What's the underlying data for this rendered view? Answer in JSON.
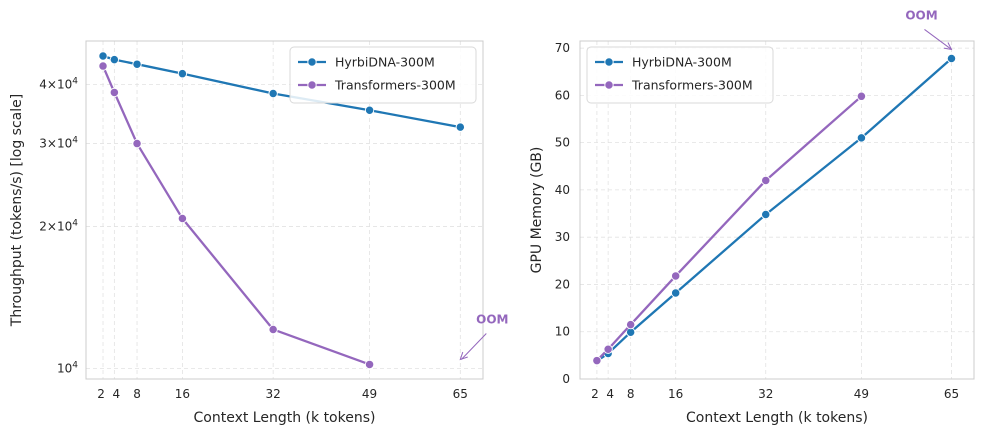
{
  "chart_data": [
    {
      "type": "line",
      "title": "",
      "xlabel": "Context Length (k tokens)",
      "ylabel": "Throughput (tokens/s) [log scale]",
      "yscale": "log",
      "grid": true,
      "legend_position": "top-right",
      "x_ticks": [
        2,
        4,
        8,
        16,
        32,
        49,
        65
      ],
      "x_tick_labels": [
        "2",
        "4",
        "8",
        "16",
        "32",
        "49",
        "65"
      ],
      "xlim": [
        -1,
        69
      ],
      "ylim": [
        9500,
        49500
      ],
      "y_major_ticks": [
        10000
      ],
      "y_major_tick_labels": [
        "10^4"
      ],
      "y_minor_ticks": [
        20000,
        30000,
        40000
      ],
      "y_minor_tick_labels": [
        "2×10^4",
        "3×10^4",
        "4×10^4"
      ],
      "series": [
        {
          "name": "HyrbiDNA-300M",
          "color": "#1f77b4",
          "x": [
            2,
            4,
            8,
            16,
            32,
            49,
            65
          ],
          "y": [
            46000,
            45200,
            44200,
            42200,
            38300,
            35300,
            32500
          ]
        },
        {
          "name": "Transformers-300M",
          "color": "#9467bd",
          "x": [
            2,
            4,
            8,
            16,
            32,
            49
          ],
          "y": [
            43800,
            38500,
            30000,
            20800,
            12100,
            10200
          ]
        }
      ],
      "annotations": [
        {
          "text": "OOM",
          "x": 65,
          "y": 10400,
          "color": "#9467bd"
        }
      ]
    },
    {
      "type": "line",
      "title": "",
      "xlabel": "Context Length (k tokens)",
      "ylabel": "GPU Memory (GB)",
      "yscale": "linear",
      "grid": true,
      "legend_position": "top-left",
      "x_ticks": [
        2,
        4,
        8,
        16,
        32,
        49,
        65
      ],
      "x_tick_labels": [
        "2",
        "4",
        "8",
        "16",
        "32",
        "49",
        "65"
      ],
      "xlim": [
        -1,
        69
      ],
      "ylim": [
        0,
        71.5
      ],
      "y_ticks": [
        0,
        10,
        20,
        30,
        40,
        50,
        60,
        70
      ],
      "y_tick_labels": [
        "0",
        "10",
        "20",
        "30",
        "40",
        "50",
        "60",
        "70"
      ],
      "series": [
        {
          "name": "HyrbiDNA-300M",
          "color": "#1f77b4",
          "x": [
            2,
            4,
            8,
            16,
            32,
            49,
            65
          ],
          "y": [
            3.8,
            5.4,
            9.9,
            18.2,
            34.8,
            51.0,
            67.8
          ]
        },
        {
          "name": "Transformers-300M",
          "color": "#9467bd",
          "x": [
            2,
            4,
            8,
            16,
            32,
            49
          ],
          "y": [
            3.9,
            6.3,
            11.5,
            21.8,
            42.0,
            59.8
          ]
        }
      ],
      "annotations": [
        {
          "text": "OOM",
          "x": 65,
          "y": 69.5,
          "color": "#9467bd"
        }
      ]
    }
  ]
}
